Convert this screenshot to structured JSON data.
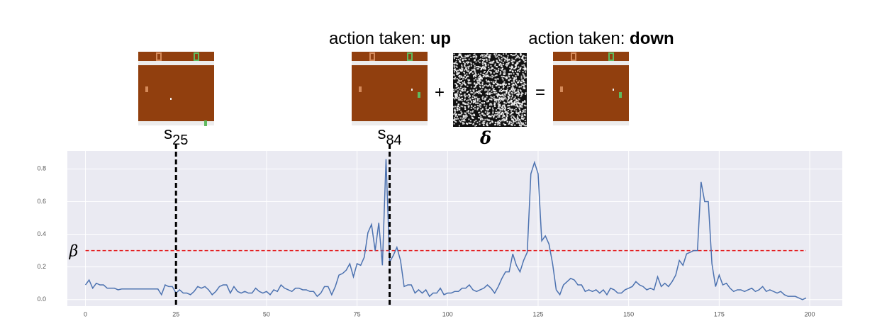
{
  "chart_data": {
    "type": "line",
    "annotations": {
      "left_action": [
        "action taken:",
        "up"
      ],
      "right_action": [
        "action taken:",
        "down"
      ],
      "operators": [
        "+",
        "="
      ],
      "perturbation": "δ"
    },
    "markers": [
      {
        "x": 25,
        "label": "s"
      },
      {
        "x": 84,
        "label": "s"
      }
    ],
    "threshold": {
      "value": 0.3,
      "label": "β",
      "color": "#e41a1c"
    },
    "x": [
      0,
      1,
      2,
      3,
      4,
      5,
      6,
      7,
      8,
      9,
      10,
      11,
      12,
      13,
      14,
      15,
      16,
      17,
      18,
      19,
      20,
      21,
      22,
      23,
      24,
      25,
      26,
      27,
      28,
      29,
      30,
      31,
      32,
      33,
      34,
      35,
      36,
      37,
      38,
      39,
      40,
      41,
      42,
      43,
      44,
      45,
      46,
      47,
      48,
      49,
      50,
      51,
      52,
      53,
      54,
      55,
      56,
      57,
      58,
      59,
      60,
      61,
      62,
      63,
      64,
      65,
      66,
      67,
      68,
      69,
      70,
      71,
      72,
      73,
      74,
      75,
      76,
      77,
      78,
      79,
      80,
      81,
      82,
      83,
      84,
      85,
      86,
      87,
      88,
      89,
      90,
      91,
      92,
      93,
      94,
      95,
      96,
      97,
      98,
      99,
      100,
      101,
      102,
      103,
      104,
      105,
      106,
      107,
      108,
      109,
      110,
      111,
      112,
      113,
      114,
      115,
      116,
      117,
      118,
      119,
      120,
      121,
      122,
      123,
      124,
      125,
      126,
      127,
      128,
      129,
      130,
      131,
      132,
      133,
      134,
      135,
      136,
      137,
      138,
      139,
      140,
      141,
      142,
      143,
      144,
      145,
      146,
      147,
      148,
      149,
      150,
      151,
      152,
      153,
      154,
      155,
      156,
      157,
      158,
      159,
      160,
      161,
      162,
      163,
      164,
      165,
      166,
      167,
      168,
      169,
      170,
      171,
      172,
      173,
      174,
      175,
      176,
      177,
      178,
      179,
      180,
      181,
      182,
      183,
      184,
      185,
      186,
      187,
      188,
      189,
      190,
      191,
      192,
      193,
      194,
      195,
      196,
      197,
      198,
      199
    ],
    "series": [
      {
        "color": "#4c72b0",
        "values": [
          0.09,
          0.12,
          0.07,
          0.1,
          0.09,
          0.09,
          0.07,
          0.07,
          0.07,
          0.06,
          0.065,
          0.065,
          0.065,
          0.065,
          0.065,
          0.065,
          0.065,
          0.065,
          0.065,
          0.065,
          0.065,
          0.03,
          0.09,
          0.08,
          0.08,
          0.04,
          0.06,
          0.04,
          0.04,
          0.03,
          0.05,
          0.08,
          0.07,
          0.08,
          0.06,
          0.03,
          0.05,
          0.08,
          0.09,
          0.09,
          0.04,
          0.08,
          0.05,
          0.04,
          0.05,
          0.04,
          0.04,
          0.07,
          0.05,
          0.04,
          0.05,
          0.03,
          0.06,
          0.05,
          0.09,
          0.07,
          0.06,
          0.05,
          0.07,
          0.07,
          0.06,
          0.06,
          0.05,
          0.05,
          0.02,
          0.04,
          0.08,
          0.08,
          0.03,
          0.08,
          0.15,
          0.16,
          0.18,
          0.22,
          0.14,
          0.22,
          0.21,
          0.26,
          0.41,
          0.46,
          0.3,
          0.47,
          0.21,
          0.86,
          0.23,
          0.27,
          0.32,
          0.24,
          0.08,
          0.09,
          0.09,
          0.04,
          0.06,
          0.04,
          0.06,
          0.02,
          0.04,
          0.04,
          0.07,
          0.03,
          0.04,
          0.04,
          0.05,
          0.05,
          0.07,
          0.07,
          0.09,
          0.06,
          0.05,
          0.06,
          0.07,
          0.09,
          0.07,
          0.04,
          0.08,
          0.13,
          0.17,
          0.17,
          0.28,
          0.21,
          0.17,
          0.24,
          0.29,
          0.77,
          0.84,
          0.77,
          0.36,
          0.39,
          0.34,
          0.22,
          0.06,
          0.03,
          0.09,
          0.11,
          0.13,
          0.12,
          0.09,
          0.09,
          0.05,
          0.06,
          0.05,
          0.06,
          0.04,
          0.06,
          0.03,
          0.07,
          0.06,
          0.04,
          0.04,
          0.06,
          0.07,
          0.08,
          0.11,
          0.09,
          0.08,
          0.06,
          0.07,
          0.06,
          0.14,
          0.08,
          0.1,
          0.08,
          0.11,
          0.15,
          0.24,
          0.21,
          0.28,
          0.29,
          0.3,
          0.3,
          0.72,
          0.6,
          0.6,
          0.22,
          0.08,
          0.15,
          0.09,
          0.1,
          0.07,
          0.05,
          0.06,
          0.06,
          0.05,
          0.06,
          0.07,
          0.05,
          0.06,
          0.08,
          0.05,
          0.06,
          0.05,
          0.04,
          0.05,
          0.03,
          0.02,
          0.02,
          0.02,
          0.01,
          0.0,
          0.01
        ]
      }
    ],
    "xlim": [
      -5,
      209
    ],
    "ylim": [
      -0.04,
      0.91
    ],
    "xticks": [
      0,
      25,
      50,
      75,
      100,
      125,
      150,
      175,
      200
    ],
    "yticks": [
      {
        "value": 0,
        "label": "0.0"
      },
      0.2,
      0.4,
      0.6,
      0.8
    ],
    "grid": true
  }
}
